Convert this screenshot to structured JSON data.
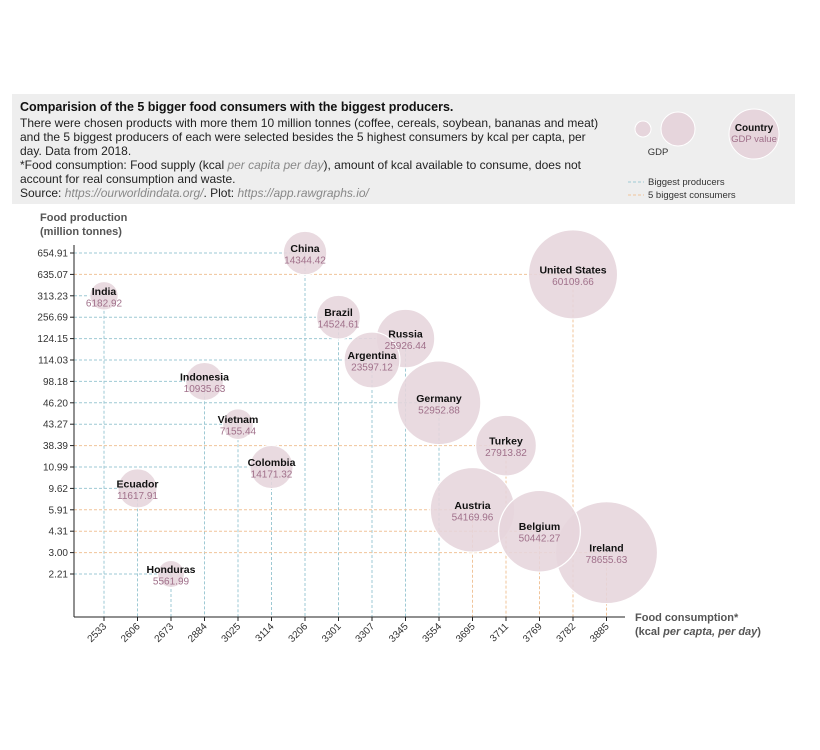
{
  "info": {
    "title": "Comparision of the 5 bigger food consumers with the biggest producers.",
    "description": "There were chosen products with more them 10 million tonnes (coffee, cereals, soybean, bananas and meat) and the 5 biggest producers of each were selected besides the 5 highest consumers by kcal per capta, per day. Data from 2018.",
    "note_prefix": "*Food consumption: Food supply (kcal ",
    "note_italic": "per capita per day",
    "note_suffix": "), amount of kcal available to consume, does not account for real consumption and waste.",
    "source_label": "Source: ",
    "source_url": "https://ourworldindata.org/",
    "plot_label": ". Plot: ",
    "plot_url": "https://app.rawgraphs.io/"
  },
  "legend": {
    "size_label": "GDP",
    "country_label": "Country",
    "gdp_value_label": "GDP value",
    "lines": [
      {
        "label": "Biggest producers",
        "color": "#9ec9d4"
      },
      {
        "label": "5 biggest consumers",
        "color": "#f0c49a"
      }
    ]
  },
  "colors": {
    "bubble_fill": "#e6d5dc",
    "bubble_stroke": "#ffffff",
    "gdp_text": "#a0708a",
    "country_text": "#111111",
    "axis": "#222222"
  },
  "chart_data": {
    "type": "scatter",
    "xlabel": "Food consumption*",
    "xlabel_sub_prefix": "(kcal ",
    "xlabel_sub_italic": "per capta, per day",
    "xlabel_sub_suffix": ")",
    "ylabel_line1": "Food production",
    "ylabel_line2": "(million tonnes)",
    "x_ticks": [
      "2533",
      "2606",
      "2673",
      "2884",
      "3025",
      "3114",
      "3206",
      "3301",
      "3307",
      "3345",
      "3554",
      "3695",
      "3711",
      "3769",
      "3782",
      "3885"
    ],
    "y_ticks": [
      "2.21",
      "3.00",
      "4.31",
      "5.91",
      "9.62",
      "10.99",
      "38.39",
      "43.27",
      "46.20",
      "98.18",
      "114.03",
      "124.15",
      "256.69",
      "313.23",
      "635.07",
      "654.91"
    ],
    "x_scale": "categorical ordinal (each distinct value one evenly spaced tick)",
    "y_scale": "categorical ordinal (each distinct value one evenly spaced tick)",
    "points": [
      {
        "country": "China",
        "x": "3206",
        "y": "654.91",
        "gdp": "14344.42",
        "group": "producer"
      },
      {
        "country": "United States",
        "x": "3782",
        "y": "635.07",
        "gdp": "60109.66",
        "group": "consumer"
      },
      {
        "country": "India",
        "x": "2533",
        "y": "313.23",
        "gdp": "6182.92",
        "group": "producer"
      },
      {
        "country": "Brazil",
        "x": "3301",
        "y": "256.69",
        "gdp": "14524.61",
        "group": "producer"
      },
      {
        "country": "Russia",
        "x": "3345",
        "y": "124.15",
        "gdp": "25926.44",
        "group": "producer"
      },
      {
        "country": "Argentina",
        "x": "3307",
        "y": "114.03",
        "gdp": "23597.12",
        "group": "producer"
      },
      {
        "country": "Indonesia",
        "x": "2884",
        "y": "98.18",
        "gdp": "10935.63",
        "group": "producer"
      },
      {
        "country": "Germany",
        "x": "3554",
        "y": "46.20",
        "gdp": "52952.88",
        "group": "producer"
      },
      {
        "country": "Vietnam",
        "x": "3025",
        "y": "43.27",
        "gdp": "7155.44",
        "group": "producer"
      },
      {
        "country": "Turkey",
        "x": "3711",
        "y": "38.39",
        "gdp": "27913.82",
        "group": "consumer"
      },
      {
        "country": "Colombia",
        "x": "3114",
        "y": "10.99",
        "gdp": "14171.32",
        "group": "producer"
      },
      {
        "country": "Ecuador",
        "x": "2606",
        "y": "9.62",
        "gdp": "11617.91",
        "group": "producer"
      },
      {
        "country": "Austria",
        "x": "3695",
        "y": "5.91",
        "gdp": "54169.96",
        "group": "consumer"
      },
      {
        "country": "Belgium",
        "x": "3769",
        "y": "4.31",
        "gdp": "50442.27",
        "group": "consumer"
      },
      {
        "country": "Ireland",
        "x": "3885",
        "y": "3.00",
        "gdp": "78655.63",
        "group": "consumer"
      },
      {
        "country": "Honduras",
        "x": "2673",
        "y": "2.21",
        "gdp": "5561.99",
        "group": "producer"
      }
    ]
  }
}
